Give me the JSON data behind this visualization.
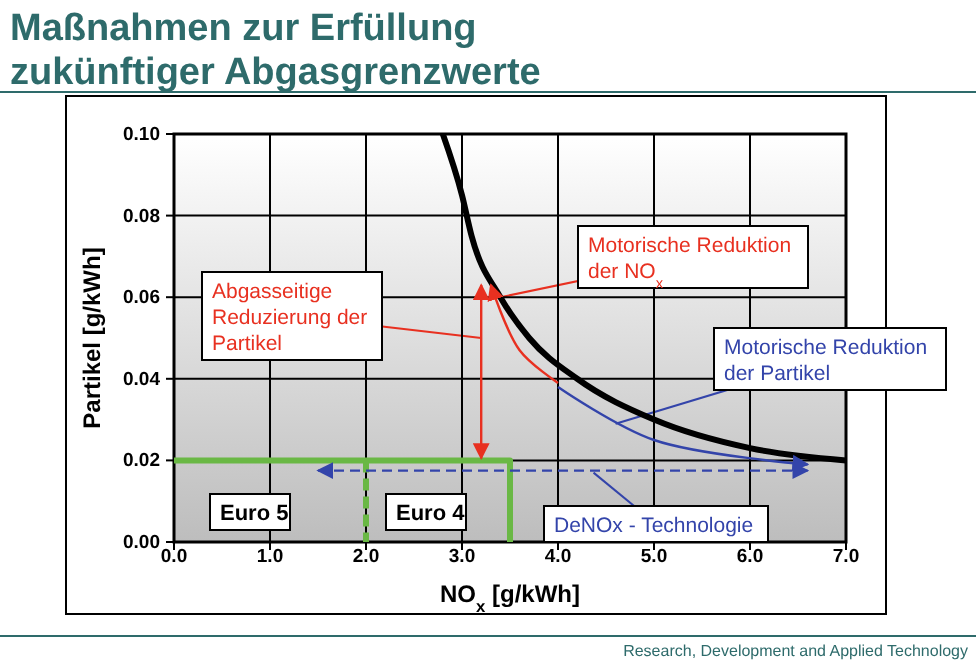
{
  "chart_data": {
    "type": "line",
    "title": "Maßnahmen zur Erfüllung zukünftiger Abgasgrenzwerte",
    "xlabel": "NO$_{x}$ [g/kWh]",
    "ylabel": "Partikel [g/kWh]",
    "xlim": [
      0,
      7
    ],
    "xticks": [
      {
        "value": 0,
        "label": "0.0"
      },
      {
        "value": 1,
        "label": "1.0"
      },
      {
        "value": 2,
        "label": "2.0"
      },
      {
        "value": 3,
        "label": "3.0"
      },
      {
        "value": 4,
        "label": "4.0"
      },
      {
        "value": 5,
        "label": "5.0"
      },
      {
        "value": 6,
        "label": "6.0"
      },
      {
        "value": 7,
        "label": "7.0"
      }
    ],
    "ylim": [
      0,
      0.1
    ],
    "yticks": [
      {
        "value": 0,
        "label": "0.00"
      },
      {
        "value": 0.02,
        "label": "0.02"
      },
      {
        "value": 0.04,
        "label": "0.04"
      },
      {
        "value": 0.06,
        "label": "0.06"
      },
      {
        "value": 0.08,
        "label": "0.08"
      },
      {
        "value": 0.1,
        "label": "0.10"
      }
    ],
    "grid": true,
    "marker": "none",
    "series": [
      {
        "color": "#000000",
        "x": [
          2.8,
          3.0,
          3.1,
          3.4,
          3.7,
          4.2,
          5.0,
          6.0,
          7.0
        ],
        "values": [
          0.1,
          0.085,
          0.075,
          0.06,
          0.05,
          0.04,
          0.03,
          0.023,
          0.02
        ]
      },
      {
        "color": "#6ab845",
        "line_style": "solid",
        "x": [
          0,
          3.5,
          3.5
        ],
        "values": [
          0.02,
          0.02,
          0
        ]
      },
      {
        "color": "#6ab845",
        "line_style": "dashed",
        "x": [
          2.0,
          2.0
        ],
        "values": [
          0.02,
          0
        ]
      }
    ],
    "annotations": [
      "Abgasseitige Reduzierung der Partikel",
      {
        "text": "Motorische Reduktion der NO$_{x}$",
        "x": 3.4,
        "y": 0.06
      },
      "Motorische Reduktion der Partikel",
      "DeNOx - Technologie",
      "Euro 5",
      "Euro 4",
      "Research, Development and Applied Technology"
    ]
  }
}
